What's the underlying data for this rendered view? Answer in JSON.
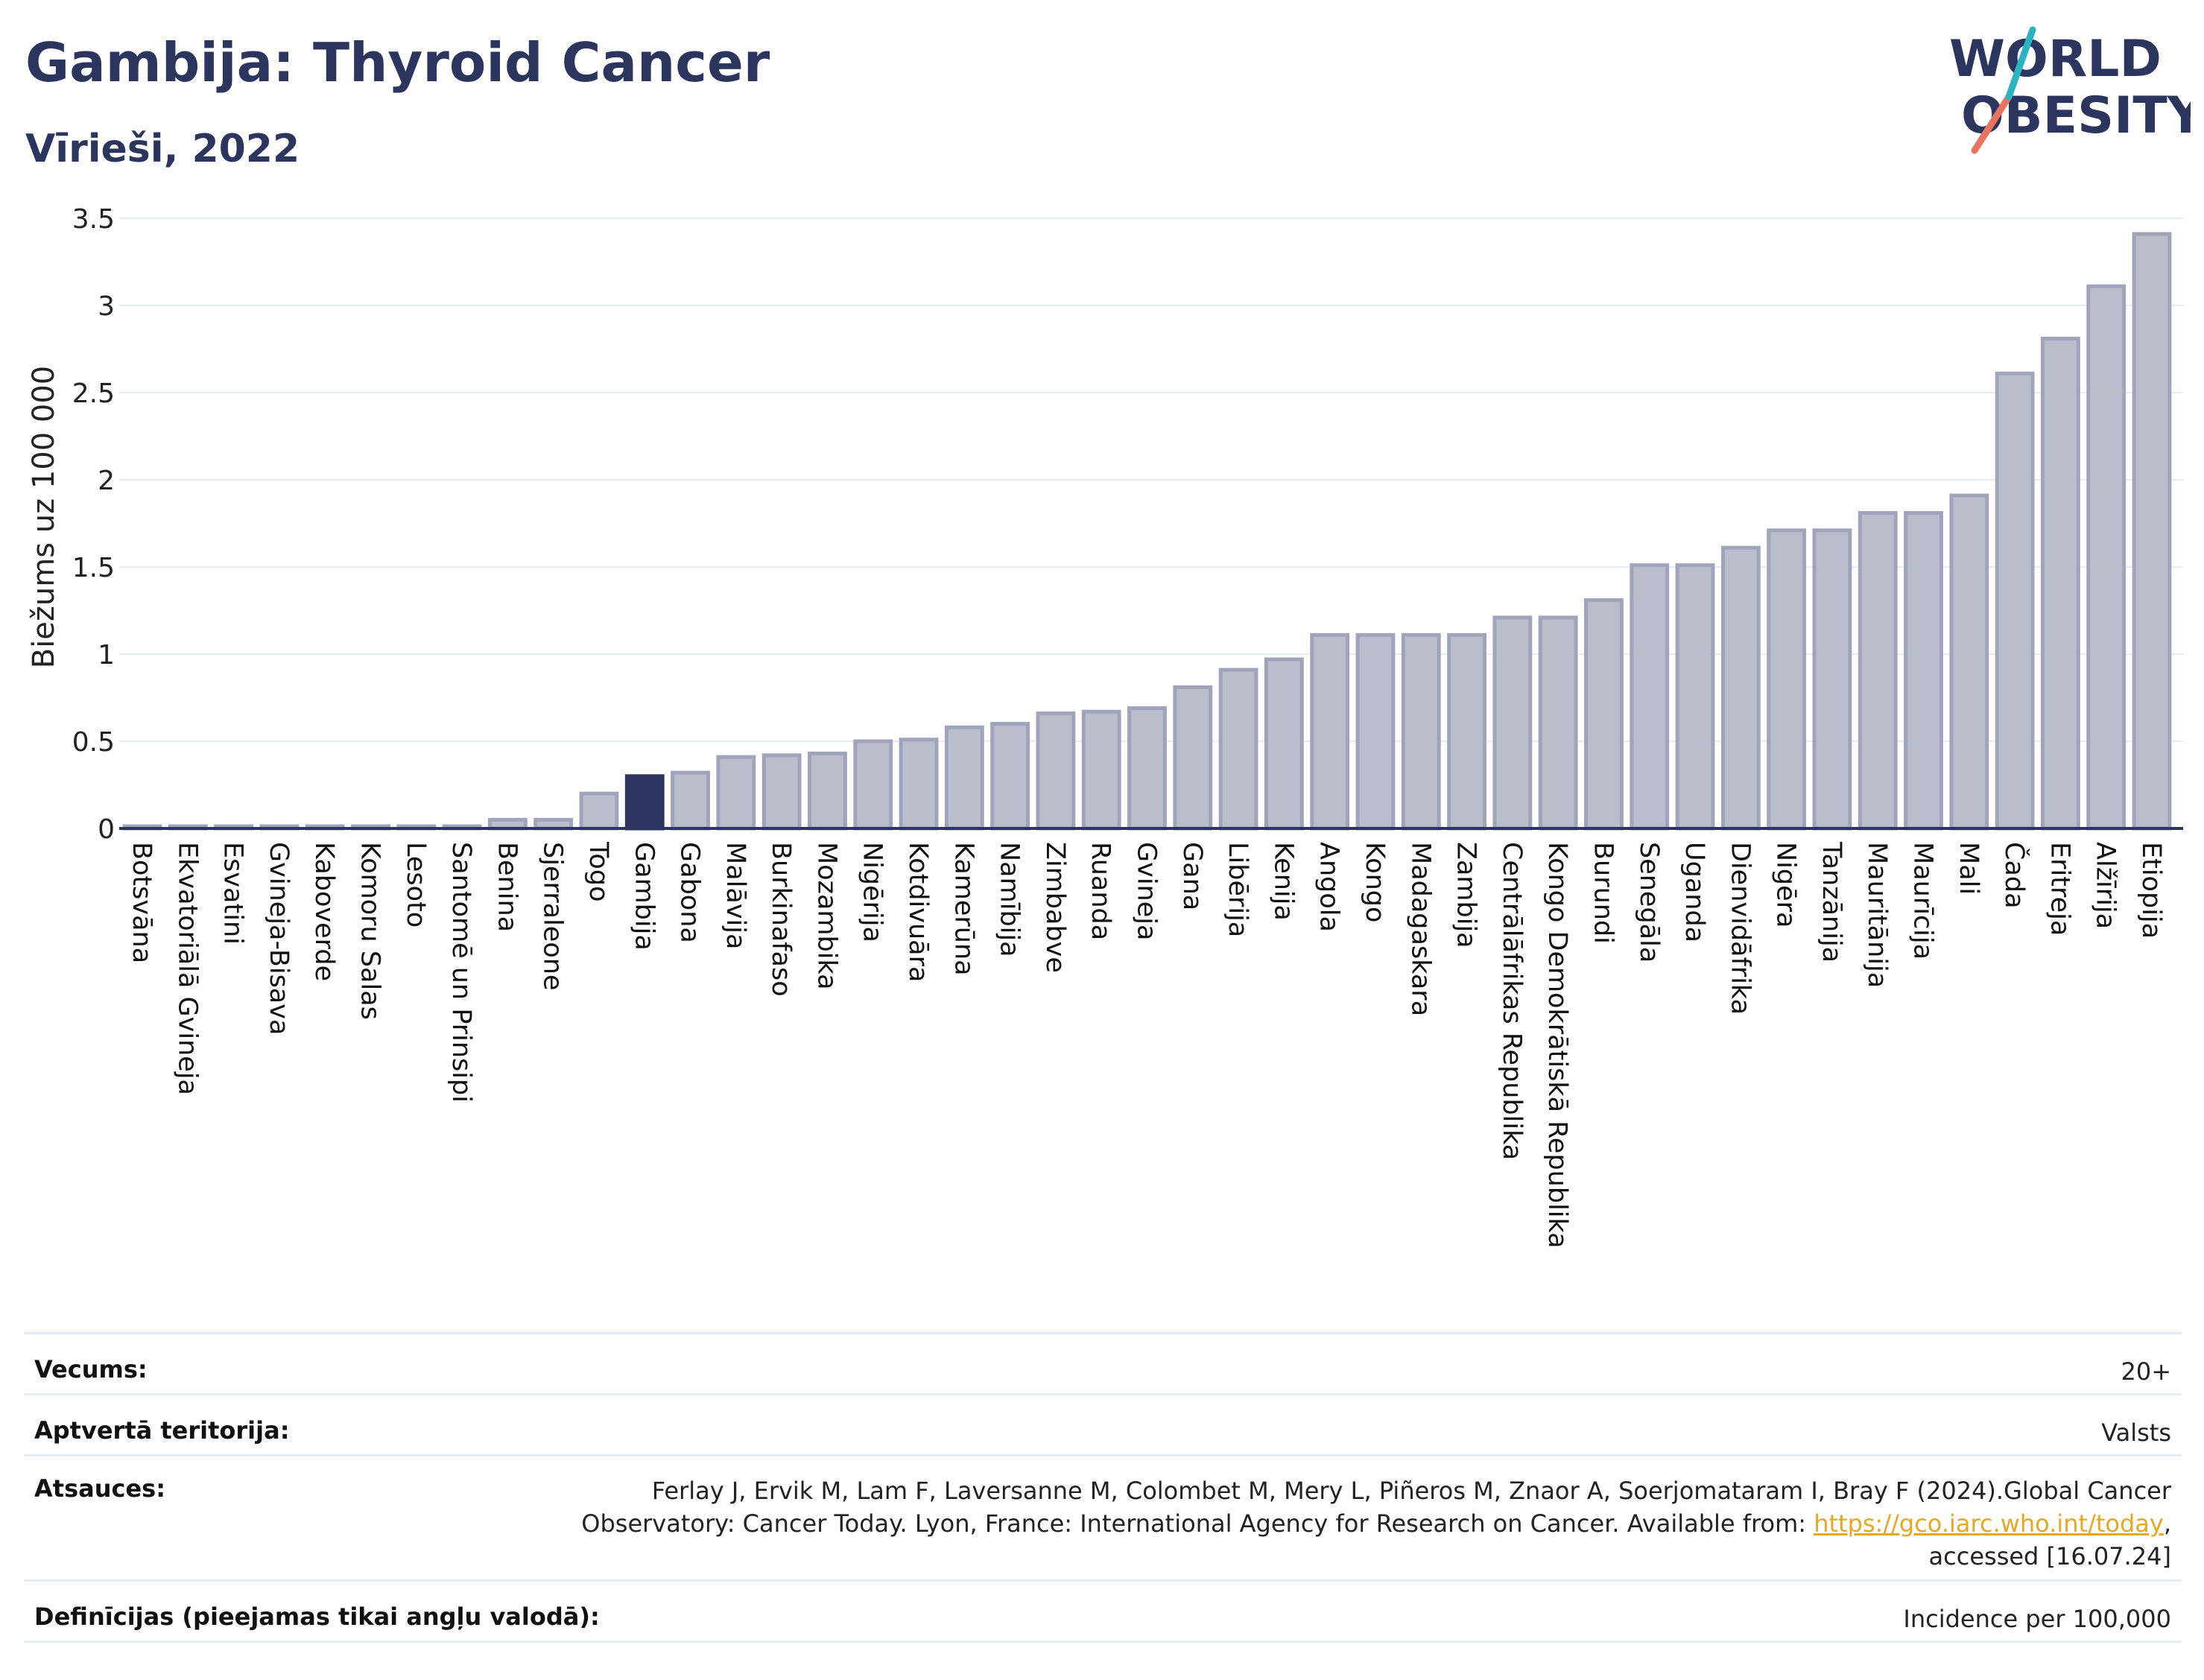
{
  "header": {
    "title": "Gambija: Thyroid Cancer",
    "subtitle": "Vīrieši, 2022"
  },
  "logo": {
    "line1": "WORLD",
    "line2": "OBESITY",
    "colors": {
      "text": "#2b355e",
      "slash_teal": "#2ab3c0",
      "slash_red": "#e8735e"
    }
  },
  "colors": {
    "bar": "#b9bdcc",
    "bar_stroke": "#9fa4ba",
    "highlight": "#2b355e",
    "axis": "#2b355e",
    "grid": "#e6ebf1"
  },
  "chart_data": {
    "type": "bar",
    "title": "Gambija: Thyroid Cancer",
    "subtitle": "Vīrieši, 2022",
    "xlabel": "",
    "ylabel": "Biežums uz 100 000",
    "ylim": [
      0,
      3.5
    ],
    "yticks": [
      0,
      0.5,
      1,
      1.5,
      2,
      2.5,
      3,
      3.5
    ],
    "ytick_labels": [
      "0",
      "0.5",
      "1",
      "1.5",
      "2",
      "2.5",
      "3",
      "3.5"
    ],
    "grid": true,
    "highlight": "Gambija",
    "categories": [
      "Botsvāna",
      "Ekvatoriālā Gvineja",
      "Esvatini",
      "Gvineja-Bisava",
      "Kaboverde",
      "Komoru Salas",
      "Lesoto",
      "Santomē un Prinsipi",
      "Benina",
      "Sjerraleone",
      "Togo",
      "Gambija",
      "Gabona",
      "Malāvija",
      "Burkinafaso",
      "Mozambika",
      "Nigērija",
      "Kotdivuāra",
      "Kamerūna",
      "Namībija",
      "Zimbabve",
      "Ruanda",
      "Gvineja",
      "Gana",
      "Libērija",
      "Kenija",
      "Angola",
      "Kongo",
      "Madagaskara",
      "Zambija",
      "Centrālāfrikas Republika",
      "Kongo Demokrātiskā Republika",
      "Burundi",
      "Senegāla",
      "Uganda",
      "Dienvidāfrika",
      "Nigēra",
      "Tanzānija",
      "Mauritānija",
      "Maurīcija",
      "Mali",
      "Čada",
      "Eritreja",
      "Alžīrija",
      "Etiopija"
    ],
    "values": [
      0,
      0,
      0,
      0,
      0,
      0,
      0,
      0,
      0.05,
      0.05,
      0.2,
      0.3,
      0.32,
      0.41,
      0.42,
      0.43,
      0.5,
      0.51,
      0.58,
      0.6,
      0.66,
      0.67,
      0.69,
      0.81,
      0.91,
      0.97,
      1.11,
      1.11,
      1.11,
      1.11,
      1.21,
      1.21,
      1.31,
      1.51,
      1.51,
      1.61,
      1.71,
      1.71,
      1.81,
      1.81,
      1.91,
      2.61,
      2.81,
      3.11,
      3.41
    ]
  },
  "meta": {
    "age_label": "Vecums:",
    "age_value": "20+",
    "territory_label": "Aptvertā teritorija:",
    "territory_value": "Valsts",
    "refs_label": "Atsauces:",
    "refs_line1": "Ferlay J, Ervik M, Lam F, Laversanne M, Colombet M, Mery L, Piñeros M, Znaor A, Soerjomataram I, Bray F (2024).Global Cancer",
    "refs_line2a": "Observatory: Cancer Today. Lyon, France: International Agency for Research on Cancer. Available from: ",
    "refs_link": "https://gco.iarc.who.int/today",
    "refs_line2b": ",",
    "refs_line3": "accessed [16.07.24]",
    "def_label": "Definīcijas (pieejamas tikai angļu valodā):",
    "def_value": "Incidence per 100,000"
  }
}
